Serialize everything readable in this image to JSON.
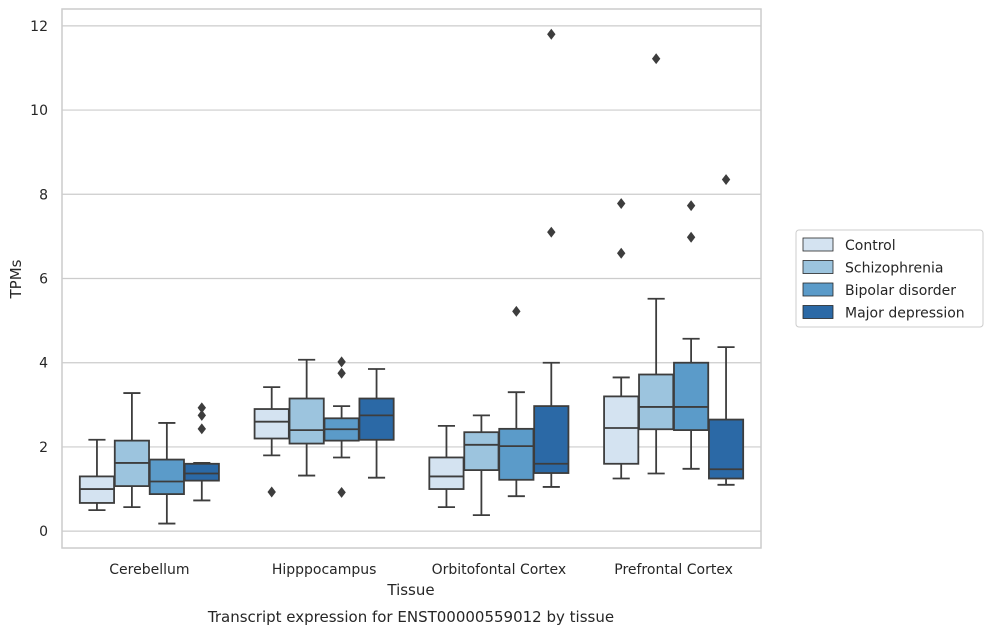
{
  "chart_data": {
    "type": "boxplot",
    "caption": "Transcript expression for ENST00000559012 by tissue",
    "xlabel": "Tissue",
    "ylabel": "TPMs",
    "ylim": [
      -0.4,
      12.4
    ],
    "yticks": [
      0,
      2,
      4,
      6,
      8,
      10,
      12
    ],
    "grid": true,
    "legend_position": "right",
    "categories": [
      "Cerebellum",
      "Hipppocampus",
      "Orbitofontal Cortex",
      "Prefrontal Cortex"
    ],
    "series": [
      {
        "name": "Control",
        "color": "#d4e3f1",
        "boxes": [
          {
            "whislo": 0.5,
            "q1": 0.67,
            "med": 1.0,
            "q3": 1.3,
            "whishi": 2.17,
            "fliers": []
          },
          {
            "whislo": 1.8,
            "q1": 2.2,
            "med": 2.6,
            "q3": 2.9,
            "whishi": 3.42,
            "fliers": [
              0.93
            ]
          },
          {
            "whislo": 0.57,
            "q1": 1.0,
            "med": 1.3,
            "q3": 1.75,
            "whishi": 2.5,
            "fliers": []
          },
          {
            "whislo": 1.25,
            "q1": 1.6,
            "med": 2.45,
            "q3": 3.2,
            "whishi": 3.65,
            "fliers": [
              6.6,
              7.78
            ]
          }
        ]
      },
      {
        "name": "Schizophrenia",
        "color": "#9cc4de",
        "boxes": [
          {
            "whislo": 0.57,
            "q1": 1.07,
            "med": 1.62,
            "q3": 2.15,
            "whishi": 3.28,
            "fliers": []
          },
          {
            "whislo": 1.32,
            "q1": 2.08,
            "med": 2.4,
            "q3": 3.15,
            "whishi": 4.07,
            "fliers": []
          },
          {
            "whislo": 0.38,
            "q1": 1.45,
            "med": 2.05,
            "q3": 2.35,
            "whishi": 2.75,
            "fliers": []
          },
          {
            "whislo": 1.37,
            "q1": 2.42,
            "med": 2.95,
            "q3": 3.72,
            "whishi": 5.52,
            "fliers": [
              11.22
            ]
          }
        ]
      },
      {
        "name": "Bipolar disorder",
        "color": "#5b9bc9",
        "boxes": [
          {
            "whislo": 0.18,
            "q1": 0.88,
            "med": 1.18,
            "q3": 1.7,
            "whishi": 2.57,
            "fliers": []
          },
          {
            "whislo": 1.75,
            "q1": 2.15,
            "med": 2.42,
            "q3": 2.68,
            "whishi": 2.97,
            "fliers": [
              0.92,
              3.75,
              4.02
            ]
          },
          {
            "whislo": 0.83,
            "q1": 1.22,
            "med": 2.02,
            "q3": 2.43,
            "whishi": 3.3,
            "fliers": [
              5.22
            ]
          },
          {
            "whislo": 1.48,
            "q1": 2.4,
            "med": 2.95,
            "q3": 4.0,
            "whishi": 4.57,
            "fliers": [
              6.98,
              7.73
            ]
          }
        ]
      },
      {
        "name": "Major depression",
        "color": "#2b69a6",
        "boxes": [
          {
            "whislo": 0.73,
            "q1": 1.2,
            "med": 1.37,
            "q3": 1.6,
            "whishi": 1.62,
            "fliers": [
              2.43,
              2.75,
              2.93
            ]
          },
          {
            "whislo": 1.27,
            "q1": 2.17,
            "med": 2.75,
            "q3": 3.15,
            "whishi": 3.85,
            "fliers": []
          },
          {
            "whislo": 1.05,
            "q1": 1.38,
            "med": 1.6,
            "q3": 2.97,
            "whishi": 4.0,
            "fliers": [
              7.1,
              11.8
            ]
          },
          {
            "whislo": 1.1,
            "q1": 1.25,
            "med": 1.47,
            "q3": 2.65,
            "whishi": 4.37,
            "fliers": [
              8.35
            ]
          }
        ]
      }
    ]
  }
}
